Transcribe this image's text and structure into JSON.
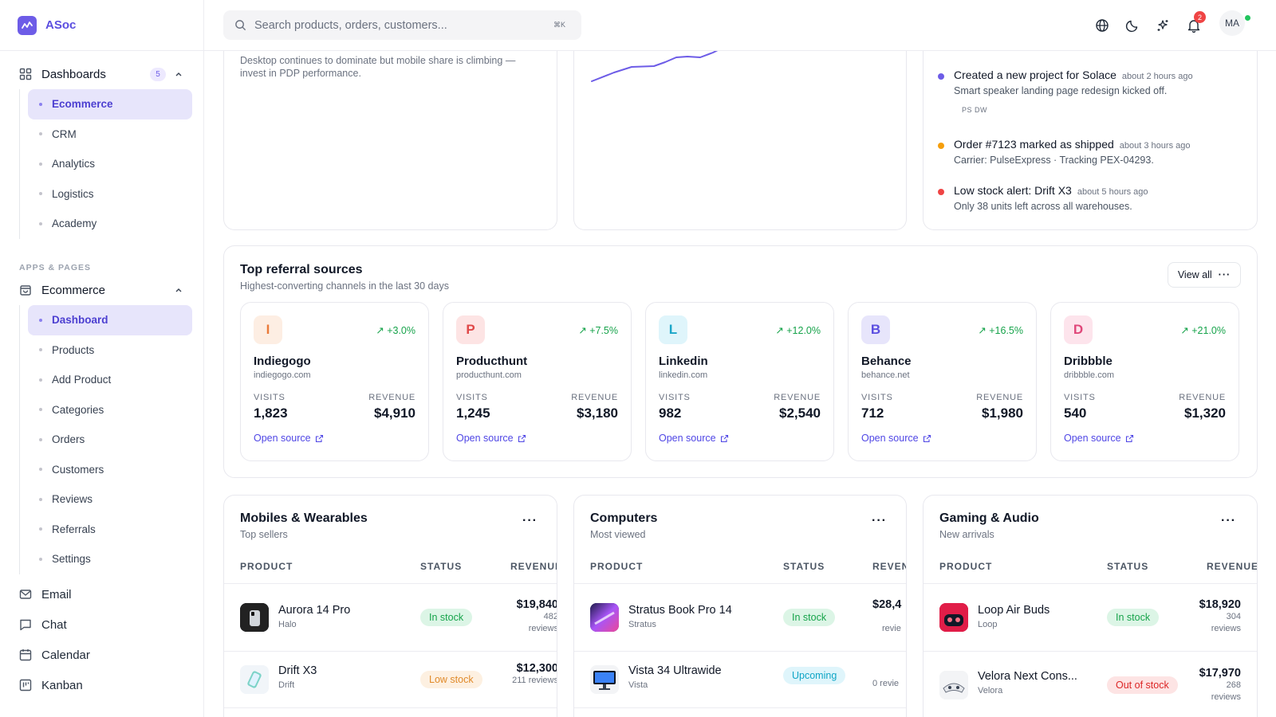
{
  "app": {
    "name": "ASoc"
  },
  "sidebar": {
    "dashboards": {
      "label": "Dashboards",
      "count": "5"
    },
    "dashboard_items": [
      "Ecommerce",
      "CRM",
      "Analytics",
      "Logistics",
      "Academy"
    ],
    "section_label": "APPS & PAGES",
    "ecommerce": {
      "label": "Ecommerce"
    },
    "ecommerce_items": [
      "Dashboard",
      "Products",
      "Add Product",
      "Categories",
      "Orders",
      "Customers",
      "Reviews",
      "Referrals",
      "Settings"
    ],
    "apps": [
      "Email",
      "Chat",
      "Calendar",
      "Kanban"
    ]
  },
  "topbar": {
    "search_placeholder": "Search products, orders, customers...",
    "search_shortcut": "⌘K",
    "notification_count": "2",
    "avatar_initials": "MA"
  },
  "device_card": {
    "note": "Desktop continues to dominate but mobile share is climbing — invest in PDP performance."
  },
  "activity": [
    {
      "title": "Created a new project for Solace",
      "time": "about 2 hours ago",
      "desc": "Smart speaker landing page redesign kicked off.",
      "tags": "PS  DW",
      "color": "#6d5ce7"
    },
    {
      "title": "Order #7123 marked as shipped",
      "time": "about 3 hours ago",
      "desc": "Carrier: PulseExpress · Tracking PEX-04293.",
      "tags": "",
      "color": "#f59e0b"
    },
    {
      "title": "Low stock alert: Drift X3",
      "time": "about 5 hours ago",
      "desc": "Only 38 units left across all warehouses.",
      "tags": "",
      "color": "#ef4444"
    }
  ],
  "referrals": {
    "title": "Top referral sources",
    "subtitle": "Highest-converting channels in the last 30 days",
    "view_all": "View all",
    "visits_label": "VISITS",
    "revenue_label": "REVENUE",
    "link_label": "Open source",
    "sources": [
      {
        "letter": "I",
        "name": "Indiegogo",
        "domain": "indiegogo.com",
        "change": "+3.0%",
        "visits": "1,823",
        "revenue": "$4,910",
        "bg": "#fdeee3",
        "fg": "#ea7a3a"
      },
      {
        "letter": "P",
        "name": "Producthunt",
        "domain": "producthunt.com",
        "change": "+7.5%",
        "visits": "1,245",
        "revenue": "$3,180",
        "bg": "#fde4e4",
        "fg": "#e04848"
      },
      {
        "letter": "L",
        "name": "Linkedin",
        "domain": "linkedin.com",
        "change": "+12.0%",
        "visits": "982",
        "revenue": "$2,540",
        "bg": "#dff5fb",
        "fg": "#1aa6c8"
      },
      {
        "letter": "B",
        "name": "Behance",
        "domain": "behance.net",
        "change": "+16.5%",
        "visits": "712",
        "revenue": "$1,980",
        "bg": "#e7e5fb",
        "fg": "#5b4ee0"
      },
      {
        "letter": "D",
        "name": "Dribbble",
        "domain": "dribbble.com",
        "change": "+21.0%",
        "visits": "540",
        "revenue": "$1,320",
        "bg": "#fde4ec",
        "fg": "#e0487a"
      }
    ]
  },
  "tables": [
    {
      "title": "Mobiles & Wearables",
      "subtitle": "Top sellers",
      "headers": [
        "PRODUCT",
        "STATUS",
        "REVENUE"
      ],
      "rows": [
        {
          "name": "Aurora 14 Pro",
          "brand": "Halo",
          "status": "In stock",
          "status_type": "green",
          "revenue": "$19,840",
          "reviews": "482 reviews"
        },
        {
          "name": "Drift X3",
          "brand": "Drift",
          "status": "Low stock",
          "status_type": "orange",
          "revenue": "$12,300",
          "reviews": "211 reviews"
        }
      ]
    },
    {
      "title": "Computers",
      "subtitle": "Most viewed",
      "headers": [
        "PRODUCT",
        "STATUS",
        "REVENUE"
      ],
      "rows": [
        {
          "name": "Stratus Book Pro 14",
          "brand": "Stratus",
          "status": "In stock",
          "status_type": "green",
          "revenue": "$28,4",
          "reviews": "revie"
        },
        {
          "name": "Vista 34 Ultrawide",
          "brand": "Vista",
          "status": "Upcoming",
          "status_type": "cyan",
          "revenue": "",
          "reviews": "0 revie"
        }
      ]
    },
    {
      "title": "Gaming & Audio",
      "subtitle": "New arrivals",
      "headers": [
        "PRODUCT",
        "STATUS",
        "REVENUE"
      ],
      "rows": [
        {
          "name": "Loop Air Buds",
          "brand": "Loop",
          "status": "In stock",
          "status_type": "green",
          "revenue": "$18,920",
          "reviews": "304 reviews"
        },
        {
          "name": "Velora Next Cons...",
          "brand": "Velora",
          "status": "Out of stock",
          "status_type": "red",
          "revenue": "$17,970",
          "reviews": "268 reviews"
        }
      ]
    }
  ],
  "colors": {
    "accent": "#5b4ee0",
    "positive": "#16a34a",
    "link": "#4f46e5"
  }
}
